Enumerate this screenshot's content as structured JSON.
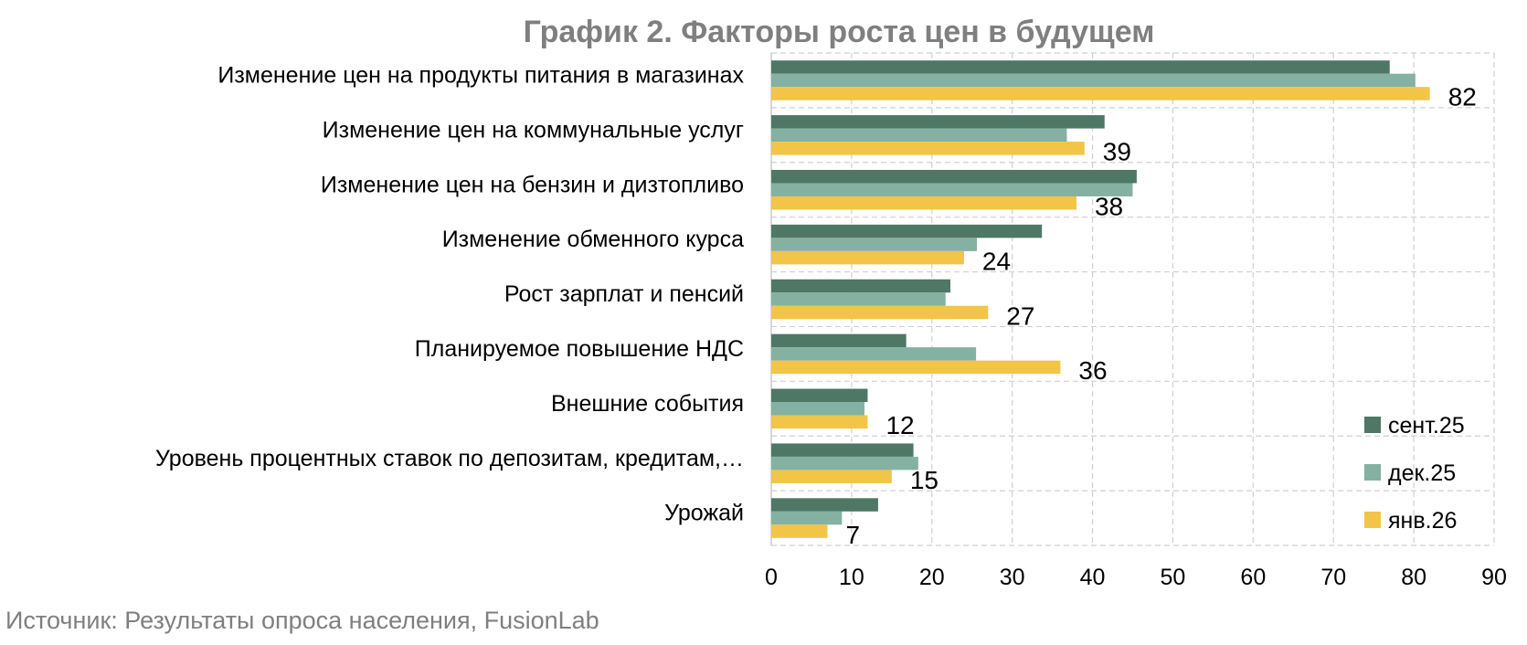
{
  "chart_data": {
    "type": "bar",
    "orientation": "horizontal",
    "title": "График 2. Факторы роста цен в будущем",
    "source": "Источник: Результаты опроса населения, FusionLab",
    "categories": [
      "Изменение цен на продукты питания в магазинах",
      "Изменение цен на коммунальные услуг",
      "Изменение цен на бензин и дизтопливо",
      "Изменение обменного курса",
      "Рост зарплат и пенсий",
      "Планируемое повышение НДС",
      "Внешние события",
      "Уровень процентных ставок по депозитам, кредитам,…",
      "Урожай"
    ],
    "series": [
      {
        "name": "сент.25",
        "color": "#4e7766",
        "values": [
          77,
          41.5,
          45.5,
          33.7,
          22.3,
          16.8,
          12,
          17.7,
          13.3
        ]
      },
      {
        "name": "дек.25",
        "color": "#84b1a2",
        "values": [
          80.2,
          36.8,
          45,
          25.6,
          21.7,
          25.5,
          11.6,
          18.3,
          8.8
        ]
      },
      {
        "name": "янв.26",
        "color": "#f2c447",
        "values": [
          82,
          39,
          38,
          24,
          27,
          36,
          12,
          15,
          7
        ]
      }
    ],
    "data_labels": [
      "82",
      "39",
      "38",
      "24",
      "27",
      "36",
      "12",
      "15",
      "7"
    ],
    "xlim": [
      0,
      90
    ],
    "xticks": [
      0,
      10,
      20,
      30,
      40,
      50,
      60,
      70,
      80,
      90
    ],
    "grid": true,
    "legend_position": "bottom-right",
    "xlabel": "",
    "ylabel": ""
  }
}
